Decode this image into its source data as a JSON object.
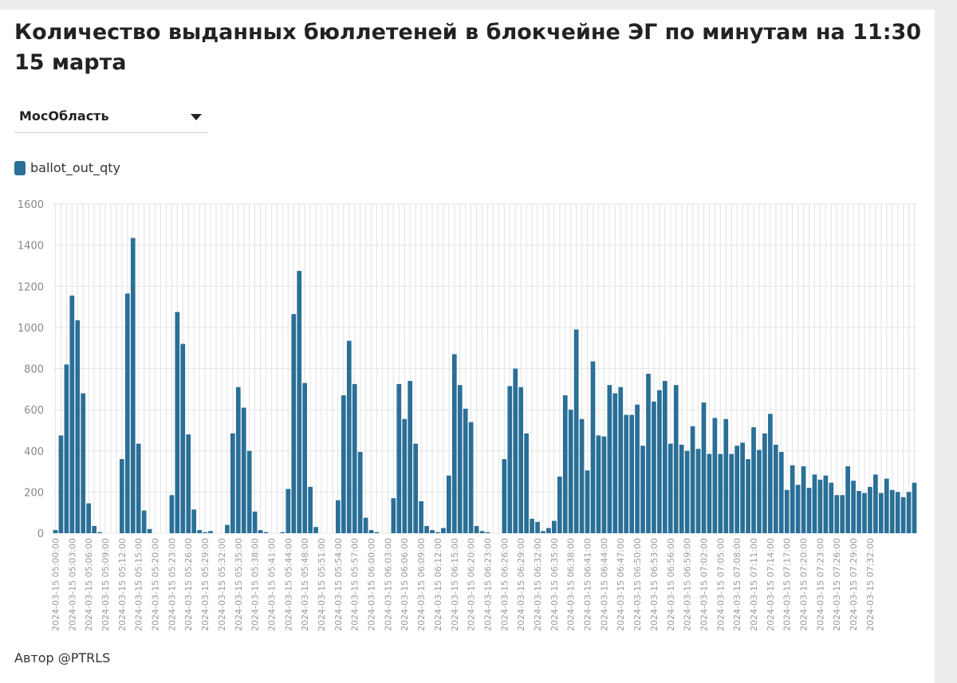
{
  "title": "Количество выданных бюллетеней в блокчейне ЭГ по минутам на 11:30 15 марта",
  "filter": {
    "selected": "МосОбласть"
  },
  "footer": {
    "author": "Автор @PTRLS"
  },
  "colors": {
    "bar": "#2a6f97",
    "grid": "#e6e6e6"
  },
  "chart_data": {
    "type": "bar",
    "title": "Количество выданных бюллетеней в блокчейне ЭГ по минутам на 11:30 15 марта",
    "xlabel": "",
    "ylabel": "",
    "ylim": [
      0,
      1600
    ],
    "yticks": [
      0,
      200,
      400,
      600,
      800,
      1000,
      1200,
      1400,
      1600
    ],
    "grid": true,
    "legend_position": "top-left",
    "x_start": "2024-03-15 05:00:00",
    "x_step_minutes": 1,
    "x_label_every": 3,
    "x_label_times": [
      "05:00:00",
      "05:03:00",
      "05:06:00",
      "05:09:00",
      "05:12:00",
      "05:15:00",
      "05:20:00",
      "05:23:00",
      "05:26:00",
      "05:29:00",
      "05:32:00",
      "05:35:00",
      "05:38:00",
      "05:41:00",
      "05:44:00",
      "05:48:00",
      "05:51:00",
      "05:54:00",
      "05:57:00",
      "06:00:00",
      "06:03:00",
      "06:06:00",
      "06:09:00",
      "06:12:00",
      "06:15:00",
      "06:20:00",
      "06:23:00",
      "06:26:00",
      "06:29:00",
      "06:32:00",
      "06:35:00",
      "06:38:00",
      "06:41:00",
      "06:44:00",
      "06:47:00",
      "06:50:00",
      "06:53:00",
      "06:56:00",
      "06:59:00",
      "07:02:00",
      "07:05:00",
      "07:08:00",
      "07:11:00",
      "07:14:00",
      "07:17:00",
      "07:20:00",
      "07:23:00",
      "07:26:00",
      "07:29:00",
      "07:32:00"
    ],
    "x_label_prefix": "2024-03-15 ",
    "series": [
      {
        "name": "ballot_out_qty",
        "color": "#2a6f97",
        "values": [
          15,
          475,
          820,
          1155,
          1035,
          680,
          145,
          35,
          5,
          0,
          0,
          0,
          360,
          1165,
          1435,
          435,
          110,
          20,
          0,
          0,
          0,
          185,
          1075,
          920,
          480,
          115,
          15,
          5,
          10,
          0,
          0,
          40,
          485,
          710,
          610,
          400,
          105,
          15,
          5,
          0,
          0,
          5,
          215,
          1065,
          1275,
          730,
          225,
          30,
          0,
          0,
          0,
          160,
          670,
          935,
          725,
          395,
          75,
          15,
          5,
          0,
          0,
          170,
          725,
          555,
          740,
          435,
          155,
          35,
          15,
          5,
          25,
          280,
          870,
          720,
          605,
          540,
          35,
          10,
          5,
          0,
          0,
          360,
          715,
          800,
          710,
          485,
          70,
          55,
          10,
          25,
          60,
          275,
          670,
          600,
          990,
          555,
          305,
          835,
          475,
          470,
          720,
          680,
          710,
          575,
          575,
          625,
          425,
          775,
          640,
          695,
          740,
          435,
          720,
          430,
          400,
          520,
          410,
          635,
          385,
          560,
          385,
          555,
          385,
          425,
          440,
          360,
          515,
          405,
          485,
          580,
          430,
          395,
          210,
          330,
          235,
          325,
          220,
          285,
          260,
          280,
          245,
          185,
          185,
          325,
          255,
          205,
          195,
          225,
          285,
          195,
          265,
          210,
          200,
          175,
          200,
          245
        ]
      }
    ]
  }
}
